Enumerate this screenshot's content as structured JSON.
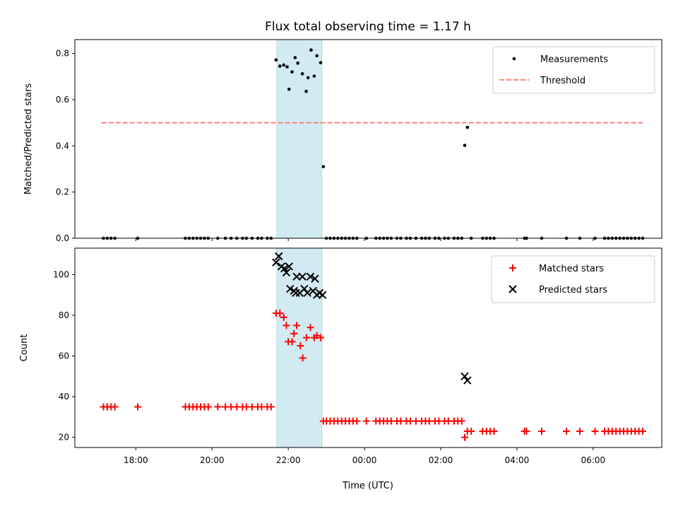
{
  "chart_data": {
    "title": "Flux total observing time = 1.17 h",
    "xlabel": "Time (UTC)",
    "x_unit": "hours UTC (values past 24 are after midnight)",
    "xlim": [
      16.4,
      31.8
    ],
    "x_ticks": [
      {
        "value": 18,
        "label": "18:00"
      },
      {
        "value": 20,
        "label": "20:00"
      },
      {
        "value": 22,
        "label": "22:00"
      },
      {
        "value": 24,
        "label": "00:00"
      },
      {
        "value": 26,
        "label": "02:00"
      },
      {
        "value": 28,
        "label": "04:00"
      },
      {
        "value": 30,
        "label": "06:00"
      }
    ],
    "highlight_span": {
      "x0": 21.7,
      "x1": 22.88,
      "color": "#add8e6"
    },
    "panels": [
      {
        "type": "scatter",
        "ylabel": "Matched/Predicted stars",
        "ylim": [
          0,
          0.86
        ],
        "y_ticks": [
          0.0,
          0.2,
          0.4,
          0.6,
          0.8
        ],
        "y_tick_labels": [
          "0.0",
          "0.2",
          "0.4",
          "0.6",
          "0.8"
        ],
        "legend_position": "top-right",
        "threshold": {
          "name": "Threshold",
          "y": 0.5,
          "x0": 17.1,
          "x1": 31.3,
          "color": "#ff6f6f"
        },
        "series": [
          {
            "name": "Measurements",
            "marker": "dot",
            "color": "#000000",
            "points": [
              [
                17.15,
                0
              ],
              [
                17.25,
                0
              ],
              [
                17.35,
                0
              ],
              [
                17.45,
                0
              ],
              [
                18.05,
                0
              ],
              [
                19.3,
                0
              ],
              [
                19.4,
                0
              ],
              [
                19.5,
                0
              ],
              [
                19.6,
                0
              ],
              [
                19.7,
                0
              ],
              [
                19.8,
                0
              ],
              [
                19.9,
                0
              ],
              [
                20.15,
                0
              ],
              [
                20.35,
                0
              ],
              [
                20.5,
                0
              ],
              [
                20.65,
                0
              ],
              [
                20.8,
                0
              ],
              [
                20.9,
                0
              ],
              [
                21.05,
                0
              ],
              [
                21.2,
                0
              ],
              [
                21.3,
                0
              ],
              [
                21.45,
                0
              ],
              [
                21.55,
                0
              ],
              [
                21.68,
                0.772
              ],
              [
                21.78,
                0.745
              ],
              [
                21.88,
                0.75
              ],
              [
                21.97,
                0.742
              ],
              [
                22.02,
                0.645
              ],
              [
                22.1,
                0.72
              ],
              [
                22.18,
                0.782
              ],
              [
                22.25,
                0.758
              ],
              [
                22.37,
                0.712
              ],
              [
                22.47,
                0.636
              ],
              [
                22.52,
                0.695
              ],
              [
                22.6,
                0.815
              ],
              [
                22.68,
                0.702
              ],
              [
                22.75,
                0.79
              ],
              [
                22.85,
                0.76
              ],
              [
                22.92,
                0.31
              ],
              [
                23.0,
                0
              ],
              [
                23.1,
                0
              ],
              [
                23.2,
                0
              ],
              [
                23.3,
                0
              ],
              [
                23.4,
                0
              ],
              [
                23.5,
                0
              ],
              [
                23.6,
                0
              ],
              [
                23.7,
                0
              ],
              [
                23.8,
                0
              ],
              [
                24.05,
                0
              ],
              [
                24.3,
                0
              ],
              [
                24.4,
                0
              ],
              [
                24.5,
                0
              ],
              [
                24.6,
                0
              ],
              [
                24.7,
                0
              ],
              [
                24.85,
                0
              ],
              [
                24.95,
                0
              ],
              [
                25.1,
                0
              ],
              [
                25.2,
                0
              ],
              [
                25.35,
                0
              ],
              [
                25.5,
                0
              ],
              [
                25.6,
                0
              ],
              [
                25.7,
                0
              ],
              [
                25.85,
                0
              ],
              [
                25.95,
                0
              ],
              [
                26.1,
                0
              ],
              [
                26.2,
                0
              ],
              [
                26.35,
                0
              ],
              [
                26.45,
                0
              ],
              [
                26.55,
                0
              ],
              [
                26.63,
                0.402
              ],
              [
                26.7,
                0.48
              ],
              [
                26.8,
                0
              ],
              [
                27.1,
                0
              ],
              [
                27.2,
                0
              ],
              [
                27.3,
                0
              ],
              [
                27.4,
                0
              ],
              [
                28.2,
                0
              ],
              [
                28.25,
                0
              ],
              [
                28.65,
                0
              ],
              [
                29.3,
                0
              ],
              [
                29.65,
                0
              ],
              [
                30.05,
                0
              ],
              [
                30.3,
                0
              ],
              [
                30.4,
                0
              ],
              [
                30.5,
                0
              ],
              [
                30.6,
                0
              ],
              [
                30.7,
                0
              ],
              [
                30.8,
                0
              ],
              [
                30.9,
                0
              ],
              [
                31.0,
                0
              ],
              [
                31.1,
                0
              ],
              [
                31.2,
                0
              ],
              [
                31.3,
                0
              ]
            ]
          }
        ]
      },
      {
        "type": "scatter",
        "ylabel": "Count",
        "ylim": [
          15,
          113
        ],
        "y_ticks": [
          20,
          40,
          60,
          80,
          100
        ],
        "y_tick_labels": [
          "20",
          "40",
          "60",
          "80",
          "100"
        ],
        "legend_position": "top-right",
        "series": [
          {
            "name": "Matched stars",
            "marker": "plus",
            "color": "#ff0000",
            "points": [
              [
                17.15,
                35
              ],
              [
                17.25,
                35
              ],
              [
                17.35,
                35
              ],
              [
                17.45,
                35
              ],
              [
                18.05,
                35
              ],
              [
                19.3,
                35
              ],
              [
                19.4,
                35
              ],
              [
                19.5,
                35
              ],
              [
                19.6,
                35
              ],
              [
                19.7,
                35
              ],
              [
                19.8,
                35
              ],
              [
                19.9,
                35
              ],
              [
                20.15,
                35
              ],
              [
                20.35,
                35
              ],
              [
                20.5,
                35
              ],
              [
                20.65,
                35
              ],
              [
                20.8,
                35
              ],
              [
                20.9,
                35
              ],
              [
                21.05,
                35
              ],
              [
                21.2,
                35
              ],
              [
                21.3,
                35
              ],
              [
                21.45,
                35
              ],
              [
                21.55,
                35
              ],
              [
                21.68,
                81
              ],
              [
                21.78,
                81
              ],
              [
                21.88,
                79
              ],
              [
                21.95,
                75
              ],
              [
                22.0,
                67
              ],
              [
                22.1,
                67
              ],
              [
                22.15,
                71
              ],
              [
                22.22,
                75
              ],
              [
                22.32,
                65
              ],
              [
                22.38,
                59
              ],
              [
                22.48,
                69
              ],
              [
                22.58,
                74
              ],
              [
                22.68,
                69
              ],
              [
                22.75,
                70
              ],
              [
                22.85,
                69
              ],
              [
                22.92,
                28
              ],
              [
                23.0,
                28
              ],
              [
                23.1,
                28
              ],
              [
                23.2,
                28
              ],
              [
                23.3,
                28
              ],
              [
                23.4,
                28
              ],
              [
                23.5,
                28
              ],
              [
                23.6,
                28
              ],
              [
                23.7,
                28
              ],
              [
                23.8,
                28
              ],
              [
                24.05,
                28
              ],
              [
                24.3,
                28
              ],
              [
                24.4,
                28
              ],
              [
                24.5,
                28
              ],
              [
                24.6,
                28
              ],
              [
                24.7,
                28
              ],
              [
                24.85,
                28
              ],
              [
                24.95,
                28
              ],
              [
                25.1,
                28
              ],
              [
                25.2,
                28
              ],
              [
                25.35,
                28
              ],
              [
                25.5,
                28
              ],
              [
                25.6,
                28
              ],
              [
                25.7,
                28
              ],
              [
                25.85,
                28
              ],
              [
                25.95,
                28
              ],
              [
                26.1,
                28
              ],
              [
                26.2,
                28
              ],
              [
                26.35,
                28
              ],
              [
                26.45,
                28
              ],
              [
                26.55,
                28
              ],
              [
                26.63,
                20
              ],
              [
                26.7,
                23
              ],
              [
                26.8,
                23
              ],
              [
                27.1,
                23
              ],
              [
                27.2,
                23
              ],
              [
                27.3,
                23
              ],
              [
                27.4,
                23
              ],
              [
                28.2,
                23
              ],
              [
                28.25,
                23
              ],
              [
                28.65,
                23
              ],
              [
                29.3,
                23
              ],
              [
                29.65,
                23
              ],
              [
                30.05,
                23
              ],
              [
                30.3,
                23
              ],
              [
                30.4,
                23
              ],
              [
                30.5,
                23
              ],
              [
                30.6,
                23
              ],
              [
                30.7,
                23
              ],
              [
                30.8,
                23
              ],
              [
                30.9,
                23
              ],
              [
                31.0,
                23
              ],
              [
                31.1,
                23
              ],
              [
                31.2,
                23
              ],
              [
                31.3,
                23
              ]
            ]
          },
          {
            "name": "Predicted stars",
            "marker": "x",
            "color": "#000000",
            "points": [
              [
                21.68,
                106
              ],
              [
                21.75,
                109
              ],
              [
                21.82,
                104
              ],
              [
                21.9,
                103
              ],
              [
                21.95,
                101
              ],
              [
                22.02,
                104
              ],
              [
                22.05,
                93
              ],
              [
                22.15,
                92
              ],
              [
                22.2,
                91
              ],
              [
                22.22,
                99
              ],
              [
                22.3,
                91
              ],
              [
                22.37,
                99
              ],
              [
                22.42,
                93
              ],
              [
                22.5,
                91
              ],
              [
                22.58,
                99
              ],
              [
                22.65,
                92
              ],
              [
                22.7,
                98
              ],
              [
                22.75,
                90
              ],
              [
                22.82,
                91
              ],
              [
                22.9,
                90
              ],
              [
                26.63,
                50
              ],
              [
                26.7,
                48
              ]
            ]
          }
        ]
      }
    ]
  }
}
